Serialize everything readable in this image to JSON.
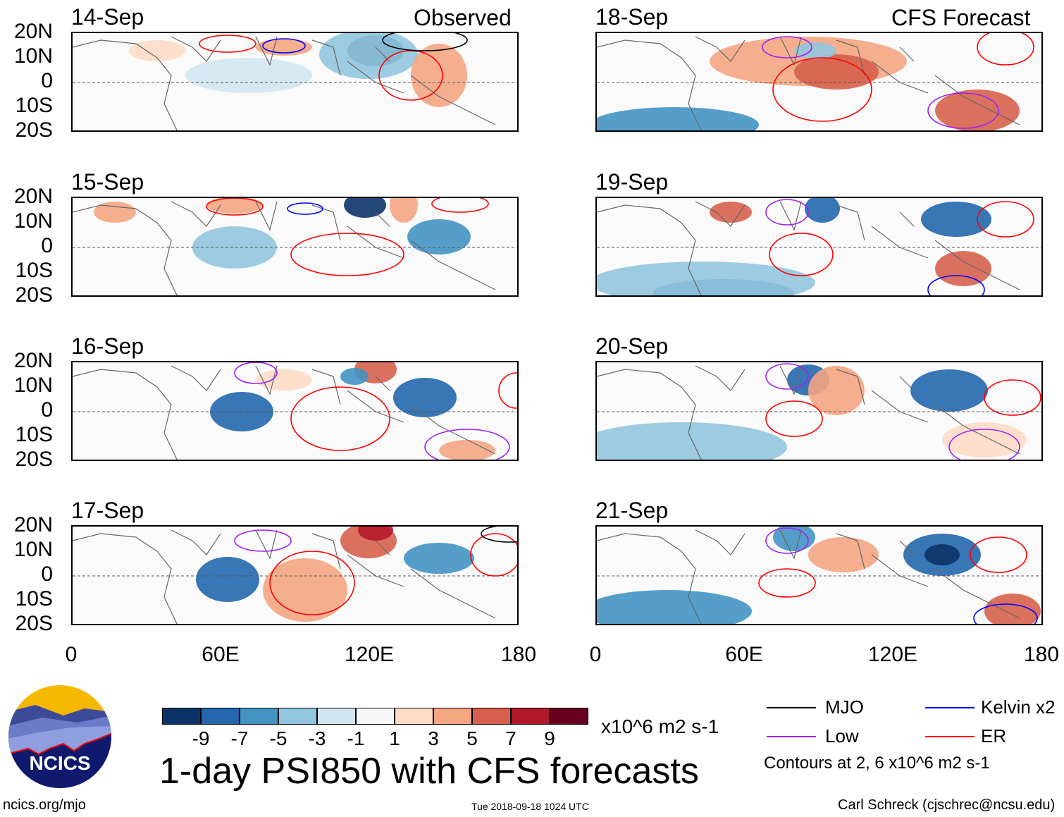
{
  "headers": {
    "observed": "Observed",
    "forecast": "CFS Forecast"
  },
  "panels": {
    "observed": [
      {
        "date": "14-Sep"
      },
      {
        "date": "15-Sep"
      },
      {
        "date": "16-Sep"
      },
      {
        "date": "17-Sep"
      }
    ],
    "forecast": [
      {
        "date": "18-Sep"
      },
      {
        "date": "19-Sep"
      },
      {
        "date": "20-Sep"
      },
      {
        "date": "21-Sep"
      }
    ]
  },
  "lat_labels": [
    "20N",
    "10N",
    "0",
    "10S",
    "20S"
  ],
  "lon_labels": [
    "0",
    "60E",
    "120E",
    "180"
  ],
  "colorbar": {
    "labels": [
      "-9",
      "-7",
      "-5",
      "-3",
      "-1",
      "1",
      "3",
      "5",
      "7",
      "9"
    ],
    "colors": [
      "#0b3367",
      "#2467ad",
      "#4393c3",
      "#92c5de",
      "#d1e5f0",
      "#f7f7f7",
      "#fddbc7",
      "#f4a582",
      "#d6604d",
      "#b2182b",
      "#67001f"
    ],
    "units": "x10^6 m2 s-1"
  },
  "title": "1-day PSI850 with CFS forecasts",
  "legend": {
    "items": [
      {
        "label": "MJO",
        "color": "#000000"
      },
      {
        "label": "Kelvin x2",
        "color": "#0000ff"
      },
      {
        "label": "Low",
        "color": "#a020f0"
      },
      {
        "label": "ER",
        "color": "#ff0000"
      }
    ],
    "contours_note": "Contours at 2, 6 x10^6 m2 s-1"
  },
  "logo": {
    "text": "NCICS"
  },
  "footer": {
    "url": "ncics.org/mjo",
    "timestamp": "Tue 2018-09-18 1024 UTC",
    "credit": "Carl Schreck (cjschrec@ncsu.edu)"
  }
}
